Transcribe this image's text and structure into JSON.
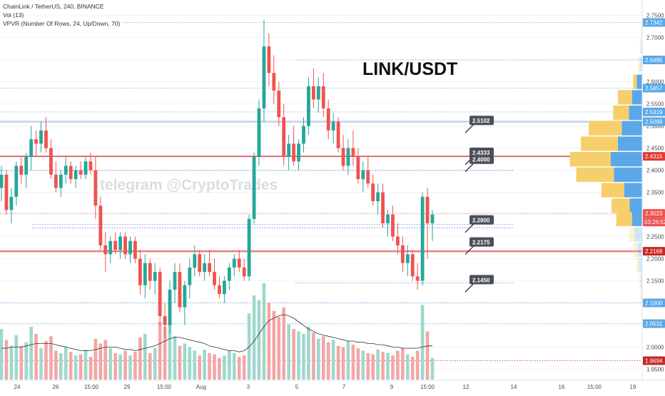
{
  "header": {
    "symbol_line": "ChainLink / TetherUS, 240, BINANCE",
    "vol_line": "Vol (13)",
    "vpvr_line": "VPVR (Number Of Rows, 24, Up/Down, 70)"
  },
  "title": "LINK/USDT",
  "watermark": "telegram @CryptoTrades",
  "colors": {
    "up": "#26a69a",
    "down": "#ef5350",
    "vol_up": "#9fd8cc",
    "vol_down": "#f4a6a6",
    "level_line": "#d32f2f",
    "support_line": "#2962ff",
    "vpvr_up": "#5aa8e8",
    "vpvr_down": "#f7cf6a",
    "note_box": "#4a4f58"
  },
  "chart_data": {
    "type": "candlestick",
    "y_axis": {
      "range": [
        1.925,
        2.785
      ],
      "ticks": [
        "1.9500",
        "2.0000",
        "2.0500",
        "2.1000",
        "2.1500",
        "2.2000",
        "2.2500",
        "2.3000",
        "2.3500",
        "2.4000",
        "2.4500",
        "2.5000",
        "2.5500",
        "2.6000",
        "2.6500",
        "2.7000",
        "2.7500"
      ]
    },
    "x_axis": {
      "labels": [
        "24",
        "26",
        "15:00",
        "29",
        "15:00",
        "Aug",
        "3",
        "5",
        "7",
        "9",
        "15:00",
        "12",
        "14",
        "16",
        "15:00",
        "19"
      ]
    },
    "candles": [
      [
        2.36,
        2.41,
        2.33,
        2.39
      ],
      [
        2.39,
        2.4,
        2.3,
        2.31
      ],
      [
        2.31,
        2.36,
        2.28,
        2.34
      ],
      [
        2.34,
        2.42,
        2.32,
        2.41
      ],
      [
        2.41,
        2.43,
        2.37,
        2.39
      ],
      [
        2.39,
        2.44,
        2.36,
        2.43
      ],
      [
        2.43,
        2.5,
        2.4,
        2.47
      ],
      [
        2.47,
        2.49,
        2.43,
        2.46
      ],
      [
        2.46,
        2.51,
        2.44,
        2.49
      ],
      [
        2.49,
        2.52,
        2.44,
        2.45
      ],
      [
        2.45,
        2.47,
        2.38,
        2.39
      ],
      [
        2.39,
        2.42,
        2.35,
        2.36
      ],
      [
        2.36,
        2.4,
        2.34,
        2.39
      ],
      [
        2.39,
        2.43,
        2.37,
        2.41
      ],
      [
        2.41,
        2.42,
        2.37,
        2.38
      ],
      [
        2.38,
        2.41,
        2.36,
        2.4
      ],
      [
        2.4,
        2.42,
        2.38,
        2.39
      ],
      [
        2.39,
        2.43,
        2.38,
        2.42
      ],
      [
        2.42,
        2.44,
        2.39,
        2.4
      ],
      [
        2.4,
        2.43,
        2.29,
        2.32
      ],
      [
        2.32,
        2.34,
        2.22,
        2.23
      ],
      [
        2.23,
        2.26,
        2.17,
        2.21
      ],
      [
        2.21,
        2.25,
        2.19,
        2.24
      ],
      [
        2.24,
        2.26,
        2.21,
        2.22
      ],
      [
        2.22,
        2.26,
        2.2,
        2.25
      ],
      [
        2.25,
        2.26,
        2.2,
        2.21
      ],
      [
        2.21,
        2.25,
        2.19,
        2.24
      ],
      [
        2.24,
        2.25,
        2.19,
        2.2
      ],
      [
        2.2,
        2.22,
        2.12,
        2.14
      ],
      [
        2.14,
        2.21,
        2.11,
        2.19
      ],
      [
        2.19,
        2.2,
        2.13,
        2.15
      ],
      [
        2.15,
        2.19,
        2.12,
        2.17
      ],
      [
        2.17,
        2.18,
        2.05,
        2.07
      ],
      [
        2.07,
        2.1,
        2.02,
        2.05
      ],
      [
        2.05,
        2.15,
        2.03,
        2.13
      ],
      [
        2.13,
        2.19,
        2.1,
        2.17
      ],
      [
        2.17,
        2.19,
        2.08,
        2.09
      ],
      [
        2.09,
        2.15,
        2.05,
        2.14
      ],
      [
        2.14,
        2.2,
        2.11,
        2.18
      ],
      [
        2.18,
        2.23,
        2.16,
        2.21
      ],
      [
        2.21,
        2.22,
        2.16,
        2.17
      ],
      [
        2.17,
        2.21,
        2.15,
        2.19
      ],
      [
        2.19,
        2.22,
        2.16,
        2.17
      ],
      [
        2.17,
        2.2,
        2.13,
        2.14
      ],
      [
        2.14,
        2.16,
        2.11,
        2.12
      ],
      [
        2.12,
        2.16,
        2.1,
        2.15
      ],
      [
        2.15,
        2.19,
        2.13,
        2.18
      ],
      [
        2.18,
        2.21,
        2.16,
        2.2
      ],
      [
        2.2,
        2.22,
        2.17,
        2.18
      ],
      [
        2.18,
        2.2,
        2.15,
        2.16
      ],
      [
        2.16,
        2.3,
        2.15,
        2.29
      ],
      [
        2.29,
        2.44,
        2.28,
        2.43
      ],
      [
        2.43,
        2.56,
        2.41,
        2.54
      ],
      [
        2.54,
        2.74,
        2.51,
        2.68
      ],
      [
        2.68,
        2.71,
        2.59,
        2.62
      ],
      [
        2.62,
        2.66,
        2.55,
        2.58
      ],
      [
        2.58,
        2.6,
        2.5,
        2.52
      ],
      [
        2.52,
        2.55,
        2.41,
        2.43
      ],
      [
        2.43,
        2.48,
        2.4,
        2.46
      ],
      [
        2.46,
        2.5,
        2.41,
        2.42
      ],
      [
        2.42,
        2.47,
        2.4,
        2.46
      ],
      [
        2.46,
        2.52,
        2.44,
        2.5
      ],
      [
        2.5,
        2.61,
        2.48,
        2.59
      ],
      [
        2.59,
        2.63,
        2.54,
        2.56
      ],
      [
        2.56,
        2.61,
        2.53,
        2.59
      ],
      [
        2.59,
        2.62,
        2.52,
        2.54
      ],
      [
        2.54,
        2.56,
        2.47,
        2.49
      ],
      [
        2.49,
        2.53,
        2.46,
        2.51
      ],
      [
        2.51,
        2.52,
        2.44,
        2.45
      ],
      [
        2.45,
        2.48,
        2.4,
        2.41
      ],
      [
        2.41,
        2.47,
        2.39,
        2.45
      ],
      [
        2.45,
        2.49,
        2.41,
        2.43
      ],
      [
        2.43,
        2.45,
        2.37,
        2.38
      ],
      [
        2.38,
        2.42,
        2.35,
        2.4
      ],
      [
        2.4,
        2.43,
        2.36,
        2.37
      ],
      [
        2.37,
        2.39,
        2.32,
        2.33
      ],
      [
        2.33,
        2.37,
        2.3,
        2.35
      ],
      [
        2.35,
        2.37,
        2.27,
        2.28
      ],
      [
        2.28,
        2.31,
        2.25,
        2.3
      ],
      [
        2.3,
        2.32,
        2.24,
        2.25
      ],
      [
        2.25,
        2.28,
        2.21,
        2.23
      ],
      [
        2.23,
        2.25,
        2.17,
        2.19
      ],
      [
        2.19,
        2.23,
        2.16,
        2.21
      ],
      [
        2.21,
        2.22,
        2.15,
        2.16
      ],
      [
        2.16,
        2.19,
        2.13,
        2.15
      ],
      [
        2.15,
        2.35,
        2.14,
        2.34
      ],
      [
        2.34,
        2.36,
        2.2,
        2.28
      ],
      [
        2.28,
        2.31,
        2.24,
        2.3
      ]
    ],
    "volume": [
      42,
      33,
      28,
      37,
      28,
      31,
      44,
      38,
      26,
      32,
      36,
      24,
      22,
      27,
      23,
      20,
      21,
      25,
      19,
      34,
      30,
      33,
      26,
      22,
      21,
      24,
      20,
      23,
      35,
      38,
      22,
      26,
      48,
      44,
      50,
      36,
      28,
      30,
      27,
      24,
      20,
      25,
      22,
      21,
      18,
      20,
      24,
      22,
      19,
      20,
      55,
      70,
      66,
      80,
      64,
      57,
      52,
      60,
      46,
      42,
      40,
      38,
      44,
      39,
      34,
      36,
      31,
      33,
      28,
      27,
      32,
      29,
      26,
      24,
      22,
      21,
      25,
      23,
      22,
      20,
      24,
      26,
      21,
      19,
      24,
      62,
      40,
      18
    ],
    "volume_ma": [
      26,
      26,
      27,
      27,
      27,
      28,
      29,
      30,
      30,
      30,
      30,
      29,
      28,
      27,
      26,
      25,
      24,
      24,
      24,
      25,
      26,
      27,
      27,
      27,
      26,
      25,
      25,
      24,
      25,
      26,
      27,
      28,
      30,
      32,
      34,
      35,
      35,
      34,
      33,
      32,
      31,
      30,
      28,
      27,
      26,
      25,
      24,
      24,
      23,
      24,
      27,
      32,
      38,
      44,
      49,
      51,
      53,
      54,
      53,
      51,
      48,
      45,
      42,
      40,
      38,
      37,
      36,
      35,
      34,
      33,
      32,
      32,
      31,
      31,
      30,
      30,
      29,
      29,
      28,
      27,
      27,
      26,
      26,
      26,
      26,
      27,
      28,
      28
    ],
    "vpvr": [
      {
        "price": 2.72,
        "up": 2,
        "down": 1
      },
      {
        "price": 2.68,
        "up": 3,
        "down": 3
      },
      {
        "price": 2.64,
        "up": 6,
        "down": 5
      },
      {
        "price": 2.6,
        "up": 14,
        "down": 9
      },
      {
        "price": 2.565,
        "up": 26,
        "down": 36
      },
      {
        "price": 2.53,
        "up": 34,
        "down": 40
      },
      {
        "price": 2.495,
        "up": 52,
        "down": 84
      },
      {
        "price": 2.46,
        "up": 62,
        "down": 94
      },
      {
        "price": 2.425,
        "up": 80,
        "down": 104
      },
      {
        "price": 2.39,
        "up": 72,
        "down": 96
      },
      {
        "price": 2.355,
        "up": 46,
        "down": 58
      },
      {
        "price": 2.32,
        "up": 32,
        "down": 46
      },
      {
        "price": 2.29,
        "up": 26,
        "down": 40
      },
      {
        "price": 2.255,
        "up": 20,
        "down": 14
      },
      {
        "price": 2.22,
        "up": 12,
        "down": 10
      },
      {
        "price": 2.185,
        "up": 8,
        "down": 6
      },
      {
        "price": 2.15,
        "up": 4,
        "down": 3
      },
      {
        "price": 2.115,
        "up": 2,
        "down": 2
      },
      {
        "price": 2.085,
        "up": 1,
        "down": 1
      }
    ],
    "levels": [
      {
        "price": 2.7342,
        "label": "2.7342",
        "tag_color": "#5aa8e8",
        "style": "dot",
        "line_color": "#5aa8e8",
        "start": 0.19
      },
      {
        "price": 2.6495,
        "label": "2.6495",
        "tag_color": "#5aa8e8",
        "style": "dot",
        "line_color": "#5aa8e8",
        "start": 0.46
      },
      {
        "price": 2.5857,
        "label": "2.5857",
        "tag_color": "#5aa8e8",
        "style": "dot",
        "line_color": "#5aa8e8",
        "start": 0.0
      },
      {
        "price": 2.5319,
        "label": "2.5319",
        "tag_color": "#5aa8e8",
        "style": "dot",
        "line_color": "#5aa8e8",
        "start": 0.0
      },
      {
        "price": 2.5099,
        "label": "2.5099",
        "tag_color": "#5aa8e8",
        "style": "solid",
        "line_color": "#b7cdf2",
        "start": 0.0
      },
      {
        "price": 2.4315,
        "label": "2.4315",
        "tag_color": "#e53935",
        "style": "solid",
        "line_color": "#d32f2f",
        "start": 0.0
      },
      {
        "price": 2.3023,
        "label": "2.3023",
        "tag_color": "#ef5350",
        "style": "dot",
        "line_color": "#ef5350",
        "start": 0.0
      },
      {
        "price": 2.2169,
        "label": "2.2169",
        "tag_color": "#c62828",
        "style": "solid",
        "line_color": "#e57373",
        "start": 0.0
      },
      {
        "price": 2.1,
        "label": "2.1000",
        "tag_color": "#5aa8e8",
        "style": "dot",
        "line_color": "#5aa8e8",
        "start": 0.0
      },
      {
        "price": 2.0531,
        "label": "2.0531",
        "tag_color": "#5aa8e8",
        "style": "dot",
        "line_color": "#5aa8e8",
        "start": 0.0
      },
      {
        "price": 1.9694,
        "label": "1.9694",
        "tag_color": "#c62828",
        "style": "dot",
        "line_color": "#c62828",
        "start": 0.0
      }
    ],
    "countdown": "03:26:52",
    "guide_lines": [
      {
        "price": 2.3995,
        "from": 0.0,
        "to": 0.8
      },
      {
        "price": 2.2775,
        "from": 0.05,
        "to": 0.8
      },
      {
        "price": 2.145,
        "from": 0.46,
        "to": 0.8
      },
      {
        "price": 2.27,
        "from": 0.05,
        "to": 0.8
      }
    ],
    "notes": [
      {
        "label": "2.5102",
        "price": 2.512
      },
      {
        "label": "2.4333",
        "price": 2.44
      },
      {
        "label": "2.4000",
        "price": 2.424
      },
      {
        "label": "2.2800",
        "price": 2.287
      },
      {
        "label": "2.2175",
        "price": 2.237
      },
      {
        "label": "2.1450",
        "price": 2.152
      }
    ]
  }
}
